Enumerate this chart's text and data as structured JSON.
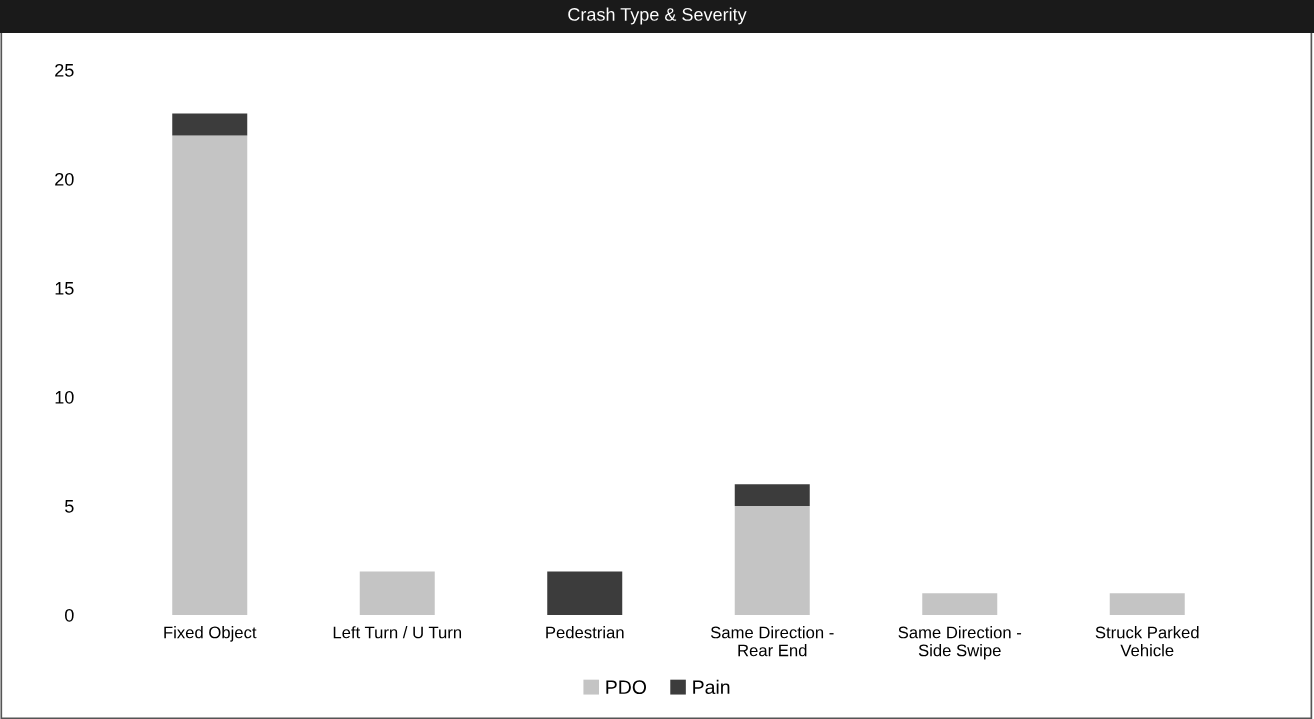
{
  "chart_data": {
    "type": "bar",
    "title": "Crash Type & Severity",
    "stacked": true,
    "categories": [
      "Fixed Object",
      "Left Turn / U Turn",
      "Pedestrian",
      "Same Direction -\nRear End",
      "Same Direction -\nSide Swipe",
      "Struck Parked\nVehicle"
    ],
    "series": [
      {
        "name": "PDO",
        "color": "#c4c4c4",
        "values": [
          22,
          2,
          0,
          5,
          1,
          1
        ]
      },
      {
        "name": "Pain",
        "color": "#3c3c3c",
        "values": [
          1,
          0,
          2,
          1,
          0,
          0
        ]
      }
    ],
    "ylim": [
      0,
      25
    ],
    "yticks": [
      0,
      5,
      10,
      15,
      20,
      25
    ],
    "grid": false,
    "legend": "bottom"
  }
}
